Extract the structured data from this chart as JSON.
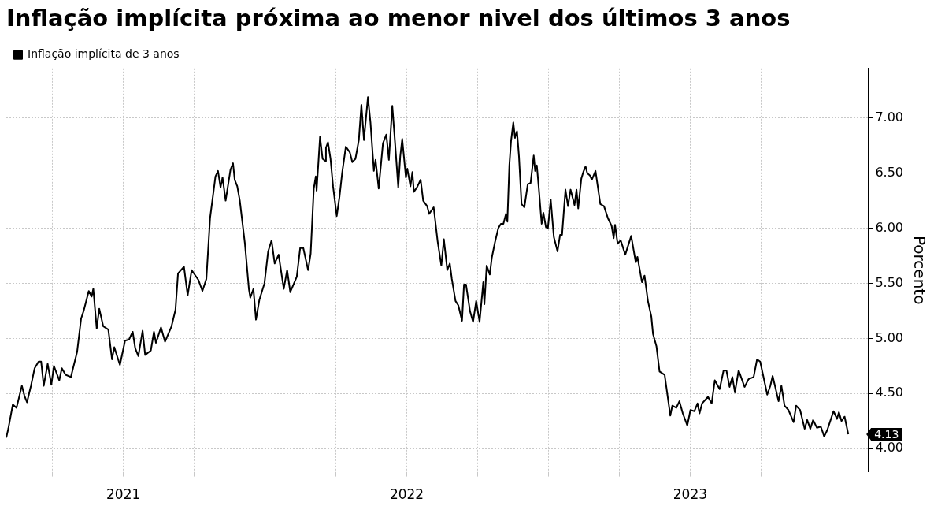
{
  "chart_data": {
    "type": "line",
    "title": "Inflação implícita próxima ao menor nivel dos últimos 3 anos",
    "ylabel": "Porcento",
    "legend": "top left",
    "grid": true,
    "x": [
      2020.587,
      2020.594,
      2020.61,
      2020.623,
      2020.642,
      2020.651,
      2020.66,
      2020.674,
      2020.687,
      2020.701,
      2020.71,
      2020.719,
      2020.733,
      2020.746,
      2020.755,
      2020.774,
      2020.783,
      2020.796,
      2020.815,
      2020.837,
      2020.851,
      2020.86,
      2020.878,
      2020.888,
      2020.894,
      2020.906,
      2020.915,
      2020.929,
      2020.947,
      2020.96,
      2020.968,
      2020.988,
      2021.006,
      2021.02,
      2021.033,
      2021.042,
      2021.053,
      2021.068,
      2021.077,
      2021.097,
      2021.108,
      2021.115,
      2021.133,
      2021.147,
      2021.17,
      2021.184,
      2021.193,
      2021.214,
      2021.227,
      2021.241,
      2021.265,
      2021.279,
      2021.293,
      2021.306,
      2021.316,
      2021.325,
      2021.334,
      2021.343,
      2021.35,
      2021.361,
      2021.378,
      2021.387,
      2021.393,
      2021.402,
      2021.411,
      2021.429,
      2021.443,
      2021.448,
      2021.459,
      2021.468,
      2021.48,
      2021.498,
      2021.511,
      2021.523,
      2021.534,
      2021.548,
      2021.566,
      2021.578,
      2021.589,
      2021.612,
      2021.624,
      2021.635,
      2021.652,
      2021.661,
      2021.672,
      2021.679,
      2021.682,
      2021.694,
      2021.703,
      2021.713,
      2021.715,
      2021.722,
      2021.731,
      2021.74,
      2021.753,
      2021.763,
      2021.772,
      2021.785,
      2021.799,
      2021.808,
      2021.819,
      2021.831,
      2021.84,
      2021.849,
      2021.863,
      2021.872,
      2021.884,
      2021.89,
      2021.901,
      2021.916,
      2021.928,
      2021.937,
      2021.949,
      2021.958,
      2021.97,
      2021.977,
      2021.984,
      2021.997,
      2022.002,
      2022.013,
      2022.02,
      2022.025,
      2022.036,
      2022.049,
      2022.058,
      2022.072,
      2022.079,
      2022.095,
      2022.109,
      2022.122,
      2022.131,
      2022.143,
      2022.152,
      2022.159,
      2022.172,
      2022.182,
      2022.195,
      2022.202,
      2022.209,
      2022.223,
      2022.234,
      2022.245,
      2022.257,
      2022.27,
      2022.274,
      2022.282,
      2022.293,
      2022.3,
      2022.311,
      2022.323,
      2022.332,
      2022.341,
      2022.35,
      2022.355,
      2022.362,
      2022.368,
      2022.376,
      2022.382,
      2022.389,
      2022.396,
      2022.405,
      2022.415,
      2022.427,
      2022.437,
      2022.448,
      2022.453,
      2022.459,
      2022.466,
      2022.476,
      2022.482,
      2022.491,
      2022.498,
      2022.508,
      2022.519,
      2022.532,
      2022.541,
      2022.548,
      2022.56,
      2022.569,
      2022.578,
      2022.592,
      2022.599,
      2022.605,
      2022.616,
      2022.623,
      2022.631,
      2022.637,
      2022.646,
      2022.653,
      2022.666,
      2022.683,
      2022.696,
      2022.71,
      2022.723,
      2022.73,
      2022.735,
      2022.744,
      2022.755,
      2022.771,
      2022.792,
      2022.808,
      2022.814,
      2022.83,
      2022.839,
      2022.851,
      2022.863,
      2022.869,
      2022.881,
      2022.892,
      2022.91,
      2022.93,
      2022.937,
      2022.951,
      2022.962,
      2022.974,
      2022.99,
      2023.001,
      2023.015,
      2023.026,
      2023.033,
      2023.042,
      2023.063,
      2023.076,
      2023.087,
      2023.104,
      2023.118,
      2023.128,
      2023.139,
      2023.149,
      2023.158,
      2023.171,
      2023.192,
      2023.206,
      2023.224,
      2023.236,
      2023.247,
      2023.258,
      2023.272,
      2023.283,
      2023.291,
      2023.302,
      2023.312,
      2023.322,
      2023.333,
      2023.347,
      2023.365,
      2023.374,
      2023.388,
      2023.404,
      2023.413,
      2023.424,
      2023.434,
      2023.447,
      2023.461,
      2023.473,
      2023.484,
      2023.506,
      2023.518,
      2023.525,
      2023.534,
      2023.545,
      2023.558
    ],
    "series": [
      {
        "name": "Inflação implícita de 3 anos",
        "color": "#000000",
        "values": [
          4.1,
          4.18,
          4.4,
          4.37,
          4.57,
          4.48,
          4.42,
          4.57,
          4.73,
          4.79,
          4.79,
          4.57,
          4.77,
          4.58,
          4.75,
          4.62,
          4.73,
          4.67,
          4.65,
          4.88,
          5.18,
          5.25,
          5.43,
          5.38,
          5.45,
          5.09,
          5.27,
          5.11,
          5.08,
          4.81,
          4.92,
          4.76,
          4.98,
          4.99,
          5.06,
          4.91,
          4.84,
          5.07,
          4.85,
          4.89,
          5.06,
          4.96,
          5.1,
          4.97,
          5.11,
          5.26,
          5.59,
          5.65,
          5.39,
          5.62,
          5.53,
          5.43,
          5.54,
          6.09,
          6.29,
          6.47,
          6.52,
          6.37,
          6.46,
          6.25,
          6.53,
          6.59,
          6.44,
          6.38,
          6.25,
          5.86,
          5.45,
          5.37,
          5.45,
          5.17,
          5.35,
          5.5,
          5.79,
          5.89,
          5.68,
          5.76,
          5.45,
          5.62,
          5.42,
          5.56,
          5.82,
          5.82,
          5.62,
          5.77,
          6.36,
          6.47,
          6.34,
          6.83,
          6.63,
          6.61,
          6.73,
          6.78,
          6.63,
          6.38,
          6.11,
          6.29,
          6.5,
          6.74,
          6.69,
          6.6,
          6.63,
          6.8,
          7.12,
          6.8,
          7.19,
          6.96,
          6.52,
          6.62,
          6.36,
          6.77,
          6.85,
          6.62,
          7.11,
          6.8,
          6.37,
          6.65,
          6.81,
          6.46,
          6.54,
          6.38,
          6.51,
          6.33,
          6.37,
          6.44,
          6.25,
          6.2,
          6.13,
          6.19,
          5.88,
          5.66,
          5.9,
          5.62,
          5.68,
          5.54,
          5.34,
          5.3,
          5.16,
          5.49,
          5.49,
          5.25,
          5.15,
          5.34,
          5.15,
          5.51,
          5.31,
          5.66,
          5.58,
          5.73,
          5.87,
          6.0,
          6.04,
          6.04,
          6.13,
          6.06,
          6.57,
          6.79,
          6.96,
          6.82,
          6.88,
          6.65,
          6.22,
          6.19,
          6.4,
          6.41,
          6.66,
          6.52,
          6.57,
          6.36,
          6.04,
          6.14,
          6.01,
          6.0,
          6.26,
          5.92,
          5.79,
          5.94,
          5.94,
          6.35,
          6.2,
          6.35,
          6.21,
          6.35,
          6.18,
          6.45,
          6.51,
          6.56,
          6.5,
          6.48,
          6.44,
          6.52,
          6.22,
          6.2,
          6.09,
          6.02,
          5.91,
          6.03,
          5.86,
          5.89,
          5.76,
          5.93,
          5.69,
          5.74,
          5.51,
          5.57,
          5.34,
          5.2,
          5.04,
          4.93,
          4.7,
          4.67,
          4.3,
          4.39,
          4.37,
          4.43,
          4.32,
          4.21,
          4.35,
          4.34,
          4.41,
          4.32,
          4.41,
          4.47,
          4.41,
          4.62,
          4.54,
          4.71,
          4.71,
          4.56,
          4.65,
          4.51,
          4.71,
          4.56,
          4.63,
          4.65,
          4.81,
          4.79,
          4.66,
          4.49,
          4.57,
          4.66,
          4.54,
          4.43,
          4.57,
          4.39,
          4.35,
          4.24,
          4.39,
          4.35,
          4.18,
          4.26,
          4.18,
          4.26,
          4.19,
          4.2,
          4.11,
          4.17,
          4.34,
          4.27,
          4.33,
          4.25,
          4.29,
          4.13
        ]
      }
    ],
    "xlim": [
      2020.587,
      2023.628
    ],
    "xticks": [
      {
        "value": 2020.75,
        "label": null
      },
      2021,
      {
        "value": 2021.25,
        "label": null
      },
      {
        "value": 2021.5,
        "label": null
      },
      {
        "value": 2021.75,
        "label": null
      },
      2022,
      {
        "value": 2022.25,
        "label": null
      },
      {
        "value": 2022.5,
        "label": null
      },
      {
        "value": 2022.75,
        "label": null
      },
      2023,
      {
        "value": 2023.25,
        "label": null
      },
      {
        "value": 2023.5,
        "label": null
      }
    ],
    "ylim": [
      3.79,
      7.45
    ],
    "yticks": [
      {
        "value": 4,
        "label": "4.00"
      },
      {
        "value": 4.5,
        "label": "4.50"
      },
      {
        "value": 5,
        "label": "5.00"
      },
      {
        "value": 5.5,
        "label": "5.50"
      },
      {
        "value": 6,
        "label": "6.00"
      },
      {
        "value": 6.5,
        "label": "6.50"
      },
      {
        "value": 7,
        "label": "7.00"
      }
    ],
    "annotations": [
      {
        "text": "4.13",
        "x": 2023.558,
        "y": 4.13
      }
    ]
  }
}
